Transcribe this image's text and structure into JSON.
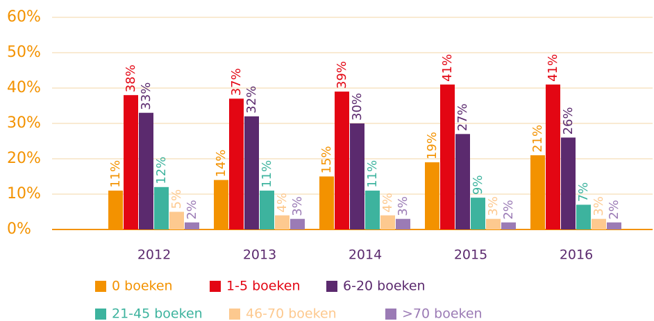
{
  "chart_data": {
    "type": "bar",
    "categories": [
      "2012",
      "2013",
      "2014",
      "2015",
      "2016"
    ],
    "series": [
      {
        "name": "0 boeken",
        "color": "#f39200",
        "values": [
          11,
          14,
          15,
          19,
          21
        ],
        "value_labels": [
          "11%",
          "14%",
          "15%",
          "19%",
          "21%"
        ]
      },
      {
        "name": "1-5 boeken",
        "color": "#e30613",
        "values": [
          38,
          37,
          39,
          41,
          41
        ],
        "value_labels": [
          "38%",
          "37%",
          "39%",
          "41%",
          "41%"
        ]
      },
      {
        "name": "6-20 boeken",
        "color": "#5b2a6e",
        "values": [
          33,
          32,
          30,
          27,
          26
        ],
        "value_labels": [
          "33%",
          "32%",
          "30%",
          "27%",
          "26%"
        ]
      },
      {
        "name": "21-45 boeken",
        "color": "#3db39e",
        "values": [
          12,
          11,
          11,
          9,
          7
        ],
        "value_labels": [
          "12%",
          "11%",
          "11%",
          "9%",
          "7%"
        ]
      },
      {
        "name": "46-70 boeken",
        "color": "#fdc98f",
        "values": [
          5,
          4,
          4,
          3,
          3
        ],
        "value_labels": [
          "5%",
          "4%",
          "4%",
          "3%",
          "3%"
        ]
      },
      {
        "name": ">70 boeken",
        "color": "#9b7bb5",
        "values": [
          2,
          3,
          3,
          2,
          2
        ],
        "value_labels": [
          "2%",
          "3%",
          "3%",
          "2%",
          "2%"
        ]
      }
    ],
    "ylim": [
      0,
      60
    ],
    "yticks": [
      {
        "value": 0,
        "label": "0%"
      },
      {
        "value": 10,
        "label": "10%"
      },
      {
        "value": 20,
        "label": "20%"
      },
      {
        "value": 30,
        "label": "30%"
      },
      {
        "value": 40,
        "label": "40%"
      },
      {
        "value": 50,
        "label": "50%"
      },
      {
        "value": 60,
        "label": "60%"
      }
    ],
    "grid": true
  }
}
